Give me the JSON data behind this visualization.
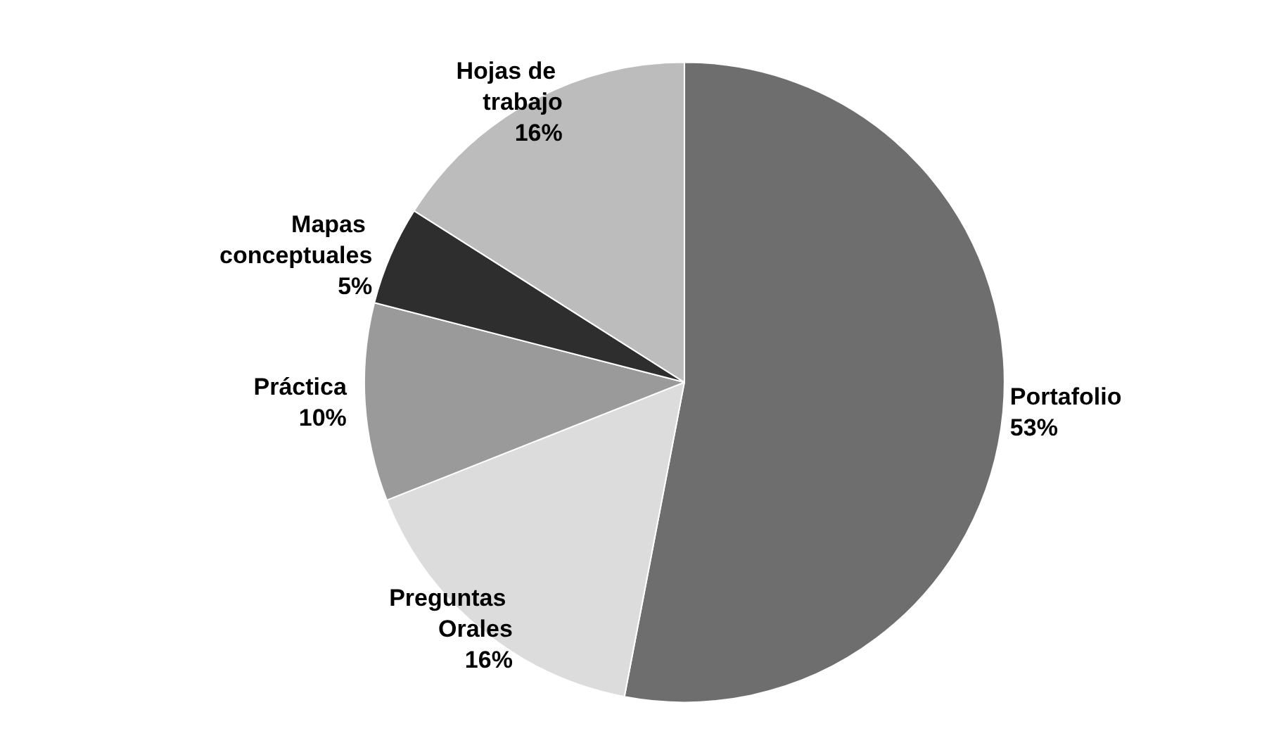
{
  "chart_data": {
    "type": "pie",
    "categories": [
      "Portafolio",
      "Preguntas Orales",
      "Práctica",
      "Mapas conceptuales",
      "Hojas de trabajo"
    ],
    "values": [
      53,
      16,
      10,
      5,
      16
    ],
    "value_labels": [
      "53%",
      "16%",
      "10%",
      "5%",
      "16%"
    ],
    "colors": [
      "#6e6e6e",
      "#dcdcdc",
      "#9a9a9a",
      "#2e2e2e",
      "#bcbcbc"
    ],
    "legend": false
  }
}
